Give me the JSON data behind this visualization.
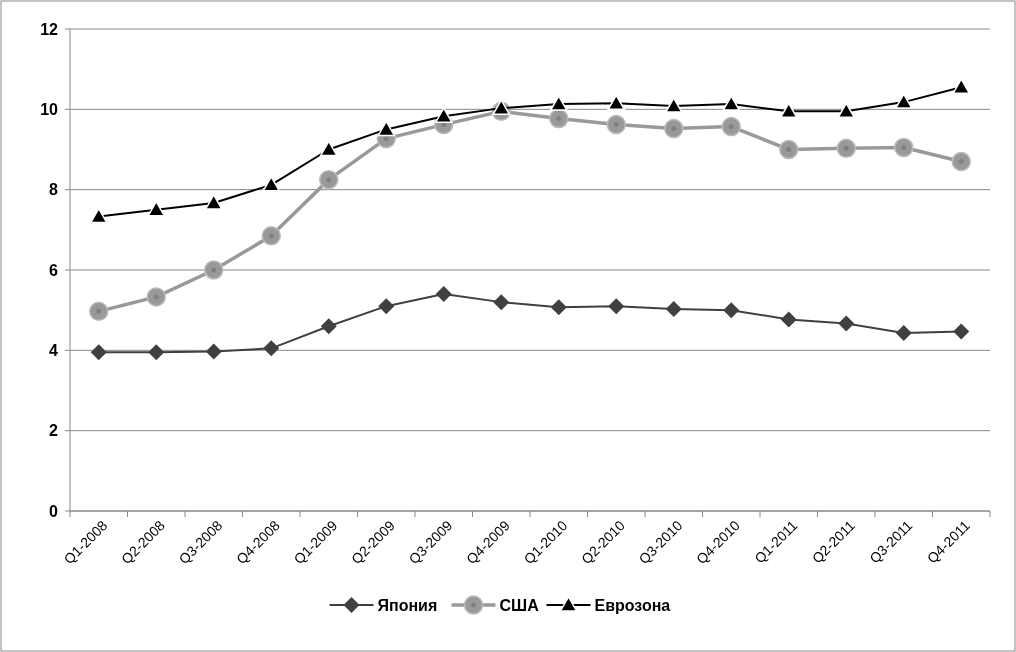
{
  "chart_data": {
    "type": "line",
    "categories": [
      "Q1-2008",
      "Q2-2008",
      "Q3-2008",
      "Q4-2008",
      "Q1-2009",
      "Q2-2009",
      "Q3-2009",
      "Q4-2009",
      "Q1-2010",
      "Q2-2010",
      "Q3-2010",
      "Q4-2010",
      "Q1-2011",
      "Q2-2011",
      "Q3-2011",
      "Q4-2011"
    ],
    "series": [
      {
        "name": "Япония",
        "color": "#404040",
        "marker": "diamond",
        "values": [
          3.95,
          3.95,
          3.97,
          4.05,
          4.6,
          5.1,
          5.4,
          5.2,
          5.07,
          5.1,
          5.03,
          5.0,
          4.77,
          4.67,
          4.43,
          4.47
        ]
      },
      {
        "name": "США",
        "color": "#999999",
        "marker": "circle",
        "values": [
          4.97,
          5.33,
          6.0,
          6.85,
          8.25,
          9.27,
          9.62,
          9.95,
          9.77,
          9.62,
          9.52,
          9.57,
          9.0,
          9.03,
          9.05,
          8.7
        ]
      },
      {
        "name": "Еврозона",
        "color": "#000000",
        "marker": "triangle",
        "values": [
          7.33,
          7.5,
          7.67,
          8.12,
          9.0,
          9.5,
          9.83,
          10.03,
          10.13,
          10.15,
          10.08,
          10.13,
          9.95,
          9.95,
          10.18,
          10.55
        ]
      }
    ],
    "ylim": [
      0,
      12
    ],
    "yticks": [
      0,
      2,
      4,
      6,
      8,
      10,
      12
    ],
    "grid": "y",
    "legend": "bottom"
  }
}
